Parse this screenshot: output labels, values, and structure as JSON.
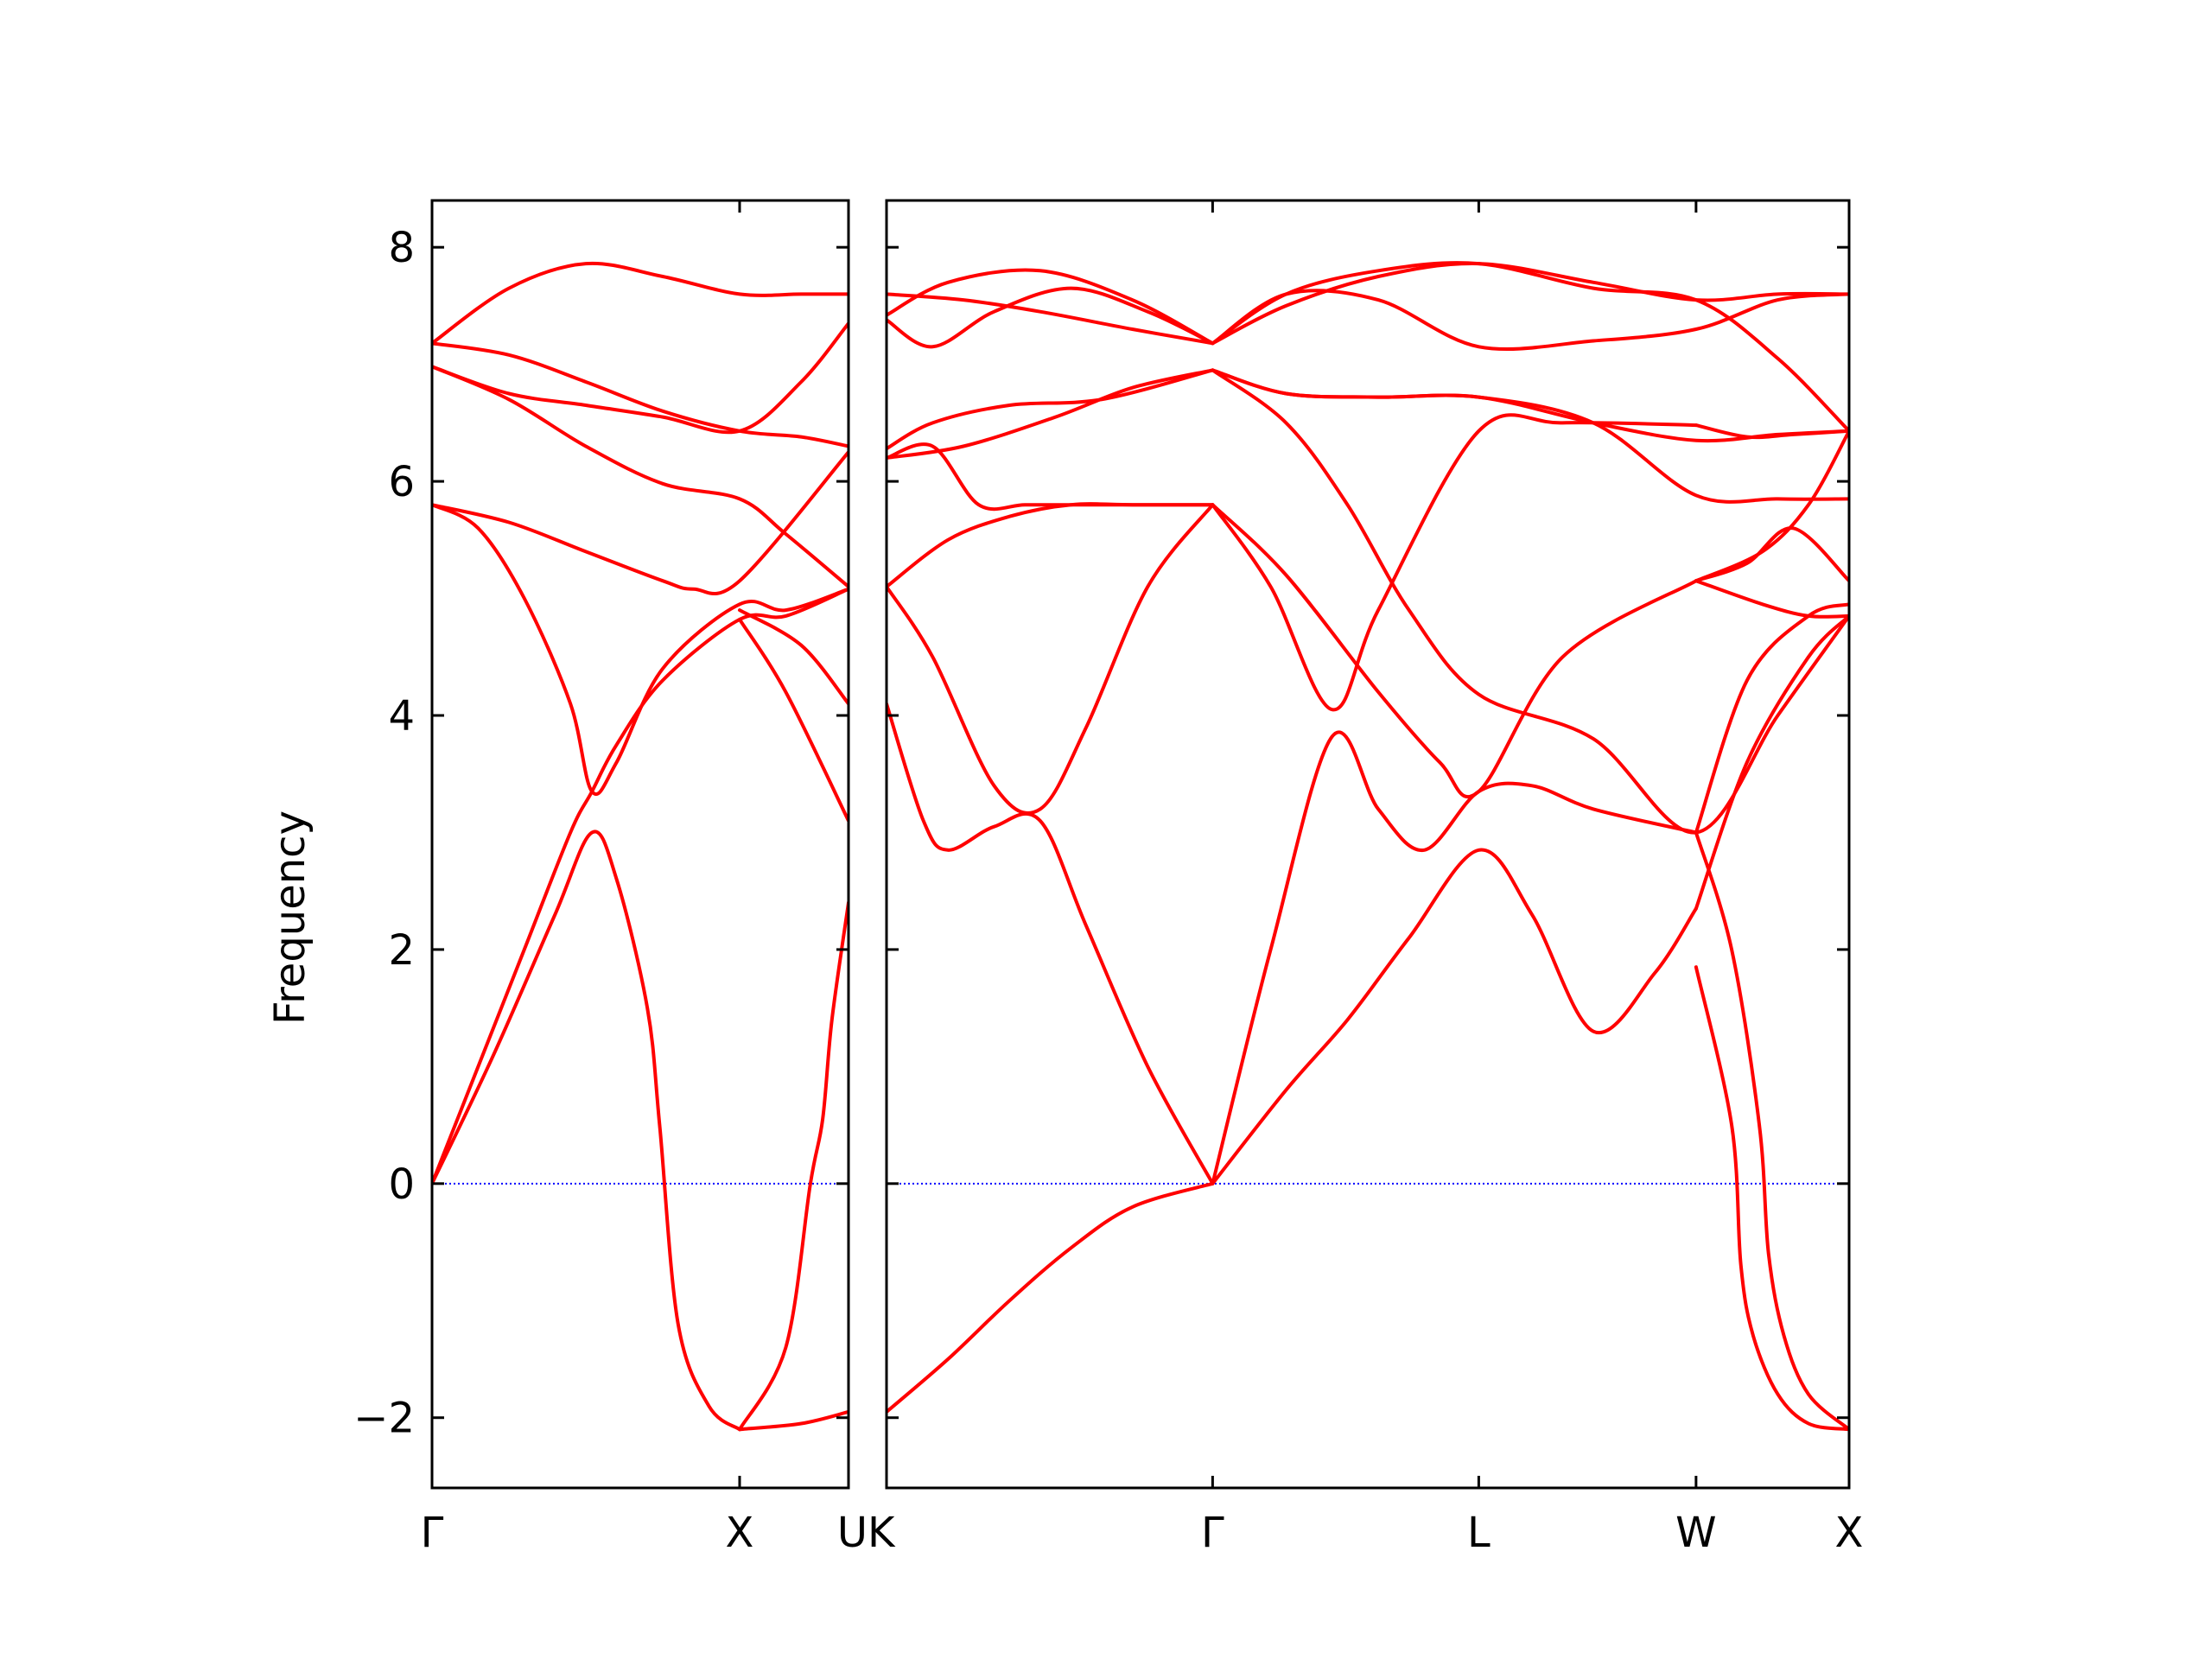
{
  "chart_data": {
    "type": "line",
    "ylabel": "Frequency",
    "ylim": [
      -2.6,
      8.4
    ],
    "yticks": [
      -2,
      0,
      2,
      4,
      6,
      8
    ],
    "ytick_labels": [
      "−2",
      "0",
      "2",
      "4",
      "6",
      "8"
    ],
    "xtick_labels": [
      "Γ",
      "X",
      "U",
      "K",
      "Γ",
      "L",
      "W",
      "X"
    ],
    "zero_line": {
      "y": 0,
      "color": "#0000ff",
      "style": "dotted"
    },
    "line_color": "#ff0000",
    "panels": [
      {
        "name": "Gamma-X-U",
        "xrange": [
          0,
          1.354
        ],
        "tick_positions": [
          0,
          1.0,
          1.354
        ],
        "tick_labels": [
          "Γ",
          "X",
          "U"
        ],
        "branches": [
          {
            "x": [
              0,
              0.25,
              0.5,
              0.75,
              1.0,
              1.2,
              1.354
            ],
            "y": [
              7.18,
              7.65,
              7.86,
              7.75,
              7.6,
              7.6,
              7.6
            ]
          },
          {
            "x": [
              0,
              0.25,
              0.5,
              0.75,
              1.0,
              1.2,
              1.354
            ],
            "y": [
              7.18,
              7.08,
              6.85,
              6.6,
              6.43,
              6.38,
              6.3
            ]
          },
          {
            "x": [
              0,
              0.25,
              0.5,
              0.75,
              1.0,
              1.2,
              1.354
            ],
            "y": [
              6.98,
              6.75,
              6.65,
              6.55,
              6.43,
              6.85,
              7.35
            ]
          },
          {
            "x": [
              0,
              0.25,
              0.5,
              0.75,
              1.0,
              1.15,
              1.354
            ],
            "y": [
              6.98,
              6.7,
              6.3,
              5.98,
              5.85,
              5.55,
              5.1
            ]
          },
          {
            "x": [
              0,
              0.25,
              0.5,
              0.75,
              0.85,
              1.0,
              1.354
            ],
            "y": [
              5.8,
              5.65,
              5.4,
              5.15,
              5.08,
              5.15,
              6.25
            ]
          },
          {
            "x": [
              0,
              0.15,
              0.3,
              0.45,
              0.52,
              0.6,
              0.75,
              1.0,
              1.15,
              1.354
            ],
            "y": [
              5.8,
              5.6,
              5.0,
              4.1,
              3.35,
              3.6,
              4.4,
              4.95,
              4.9,
              5.08
            ]
          },
          {
            "x": [
              0,
              0.15,
              0.3,
              0.45,
              0.52,
              0.6,
              0.75,
              1.0,
              1.15,
              1.354
            ],
            "y": [
              0,
              1.0,
              2.0,
              3.0,
              3.35,
              3.75,
              4.3,
              4.82,
              4.85,
              5.08
            ]
          },
          {
            "x": [
              0,
              0.2,
              0.4,
              0.52,
              0.6,
              0.7,
              0.74,
              0.8,
              0.9,
              1.0
            ],
            "y": [
              0,
              1.1,
              2.3,
              3.0,
              2.6,
              1.5,
              0.5,
              -1.2,
              -1.9,
              -2.1
            ]
          },
          {
            "x": [
              1.0,
              1.15,
              1.23,
              1.27,
              1.3,
              1.354
            ],
            "y": [
              -2.1,
              -1.4,
              0.0,
              0.55,
              1.4,
              2.4
            ]
          },
          {
            "x": [
              1.0,
              1.2,
              1.354
            ],
            "y": [
              -2.1,
              -2.05,
              -1.95
            ]
          },
          {
            "x": [
              1.0,
              1.15,
              1.354
            ],
            "y": [
              4.82,
              4.2,
              3.1
            ]
          },
          {
            "x": [
              1.0,
              1.2,
              1.354
            ],
            "y": [
              4.9,
              4.6,
              4.1
            ]
          }
        ]
      },
      {
        "name": "K-Gamma-L-W-X",
        "xrange": [
          0,
          3.132
        ],
        "tick_positions": [
          0,
          1.061,
          1.927,
          2.634,
          3.132
        ],
        "tick_labels": [
          "K",
          "Γ",
          "L",
          "W",
          "X"
        ],
        "branches": [
          {
            "x": [
              0,
              0.25,
              0.5,
              0.8,
              1.061
            ],
            "y": [
              7.6,
              7.55,
              7.45,
              7.3,
              7.18
            ]
          },
          {
            "x": [
              0,
              0.15,
              0.35,
              0.6,
              0.85,
              1.061
            ],
            "y": [
              7.38,
              7.15,
              7.45,
              7.65,
              7.45,
              7.18
            ]
          },
          {
            "x": [
              0,
              0.2,
              0.5,
              0.8,
              1.061
            ],
            "y": [
              7.42,
              7.7,
              7.8,
              7.55,
              7.18
            ]
          },
          {
            "x": [
              1.061,
              1.3,
              1.6,
              1.927,
              2.3,
              2.634,
              2.9,
              3.132
            ],
            "y": [
              7.18,
              7.5,
              7.75,
              7.86,
              7.7,
              7.55,
              7.6,
              7.6
            ]
          },
          {
            "x": [
              1.061,
              1.3,
              1.6,
              1.927,
              2.3,
              2.634,
              2.9,
              3.132
            ],
            "y": [
              7.18,
              7.6,
              7.55,
              7.15,
              7.2,
              7.3,
              7.55,
              7.6
            ]
          },
          {
            "x": [
              1.061,
              1.3,
              1.6,
              1.927,
              2.3,
              2.634,
              2.9,
              3.132
            ],
            "y": [
              7.18,
              7.6,
              7.8,
              7.86,
              7.65,
              7.55,
              7.05,
              6.43
            ]
          },
          {
            "x": [
              0,
              0.15,
              0.4,
              0.7,
              1.061
            ],
            "y": [
              6.28,
              6.5,
              6.65,
              6.7,
              6.95
            ]
          },
          {
            "x": [
              0,
              0.25,
              0.55,
              0.8,
              1.061
            ],
            "y": [
              6.2,
              6.3,
              6.55,
              6.8,
              6.95
            ]
          },
          {
            "x": [
              1.061,
              1.3,
              1.6,
              1.927,
              2.3,
              2.634,
              2.9,
              3.132
            ],
            "y": [
              6.95,
              6.75,
              6.72,
              6.72,
              6.5,
              6.35,
              6.4,
              6.43
            ]
          },
          {
            "x": [
              1.061,
              1.3,
              1.6,
              1.927,
              2.3,
              2.634,
              2.9,
              3.132
            ],
            "y": [
              6.95,
              6.75,
              6.72,
              6.72,
              6.5,
              5.88,
              5.85,
              5.85
            ]
          },
          {
            "x": [
              1.061,
              1.3,
              1.5,
              1.7,
              1.927,
              2.3,
              2.634,
              2.9,
              3.132
            ],
            "y": [
              6.95,
              6.5,
              5.8,
              4.9,
              4.18,
              3.8,
              3.0,
              4.0,
              4.85
            ]
          },
          {
            "x": [
              0,
              0.15,
              0.3,
              0.45,
              0.6,
              0.8,
              1.061
            ],
            "y": [
              6.2,
              6.3,
              5.8,
              5.8,
              5.8,
              5.8,
              5.8
            ]
          },
          {
            "x": [
              0,
              0.2,
              0.4,
              0.6,
              0.8,
              1.061
            ],
            "y": [
              5.1,
              5.5,
              5.7,
              5.8,
              5.8,
              5.8
            ]
          },
          {
            "x": [
              0,
              0.15,
              0.35,
              0.5,
              0.65,
              0.85,
              1.061
            ],
            "y": [
              5.1,
              4.5,
              3.4,
              3.2,
              3.9,
              5.1,
              5.8
            ]
          },
          {
            "x": [
              0,
              0.12,
              0.2,
              0.35,
              0.5,
              0.65,
              0.85,
              1.061
            ],
            "y": [
              4.1,
              3.1,
              2.85,
              3.05,
              3.1,
              2.2,
              1.0,
              0.0
            ]
          },
          {
            "x": [
              0,
              0.2,
              0.4,
              0.6,
              0.8,
              1.061
            ],
            "y": [
              -1.95,
              -1.5,
              -1.0,
              -0.55,
              -0.2,
              0.0
            ]
          },
          {
            "x": [
              1.061,
              1.3,
              1.5,
              1.7,
              1.927,
              2.1,
              2.3,
              2.5,
              2.634
            ],
            "y": [
              0.0,
              0.8,
              1.4,
              2.1,
              2.85,
              2.3,
              1.3,
              1.8,
              2.35
            ]
          },
          {
            "x": [
              1.061,
              1.25,
              1.45,
              1.6,
              1.75,
              1.927,
              2.1,
              2.3,
              2.634
            ],
            "y": [
              0.0,
              2.0,
              3.82,
              3.2,
              2.85,
              3.35,
              3.4,
              3.2,
              3.0
            ]
          },
          {
            "x": [
              1.061,
              1.25,
              1.45,
              1.6,
              1.927,
              2.2,
              2.634
            ],
            "y": [
              5.8,
              5.1,
              4.05,
              4.9,
              6.43,
              6.5,
              6.48
            ]
          },
          {
            "x": [
              1.061,
              1.3,
              1.6,
              1.8,
              1.927,
              2.2,
              2.634
            ],
            "y": [
              5.8,
              5.2,
              4.2,
              3.6,
              3.35,
              4.5,
              5.15
            ]
          },
          {
            "x": [
              2.634,
              2.8,
              2.95,
              3.132
            ],
            "y": [
              6.48,
              6.38,
              6.4,
              6.43
            ]
          },
          {
            "x": [
              2.634,
              2.85,
              3.0,
              3.132
            ],
            "y": [
              5.15,
              5.4,
              5.8,
              6.43
            ]
          },
          {
            "x": [
              2.634,
              2.85,
              3.0,
              3.132
            ],
            "y": [
              5.15,
              4.95,
              4.85,
              4.85
            ]
          },
          {
            "x": [
              2.634,
              2.8,
              2.95,
              3.132
            ],
            "y": [
              5.15,
              5.3,
              5.6,
              5.15
            ]
          },
          {
            "x": [
              2.634,
              2.8,
              3.0,
              3.132
            ],
            "y": [
              3.0,
              4.3,
              4.85,
              4.95
            ]
          },
          {
            "x": [
              2.634,
              2.8,
              3.0,
              3.132
            ],
            "y": [
              2.35,
              3.6,
              4.5,
              4.85
            ]
          },
          {
            "x": [
              2.634,
              2.75,
              2.78,
              2.82,
              2.9,
              3.0,
              3.132
            ],
            "y": [
              1.85,
              0.5,
              -0.7,
              -1.3,
              -1.8,
              -2.05,
              -2.1
            ]
          },
          {
            "x": [
              2.634,
              2.75,
              2.84,
              2.87,
              2.92,
              3.0,
              3.132
            ],
            "y": [
              3.0,
              2.0,
              0.5,
              -0.6,
              -1.3,
              -1.8,
              -2.1
            ]
          }
        ]
      }
    ]
  }
}
